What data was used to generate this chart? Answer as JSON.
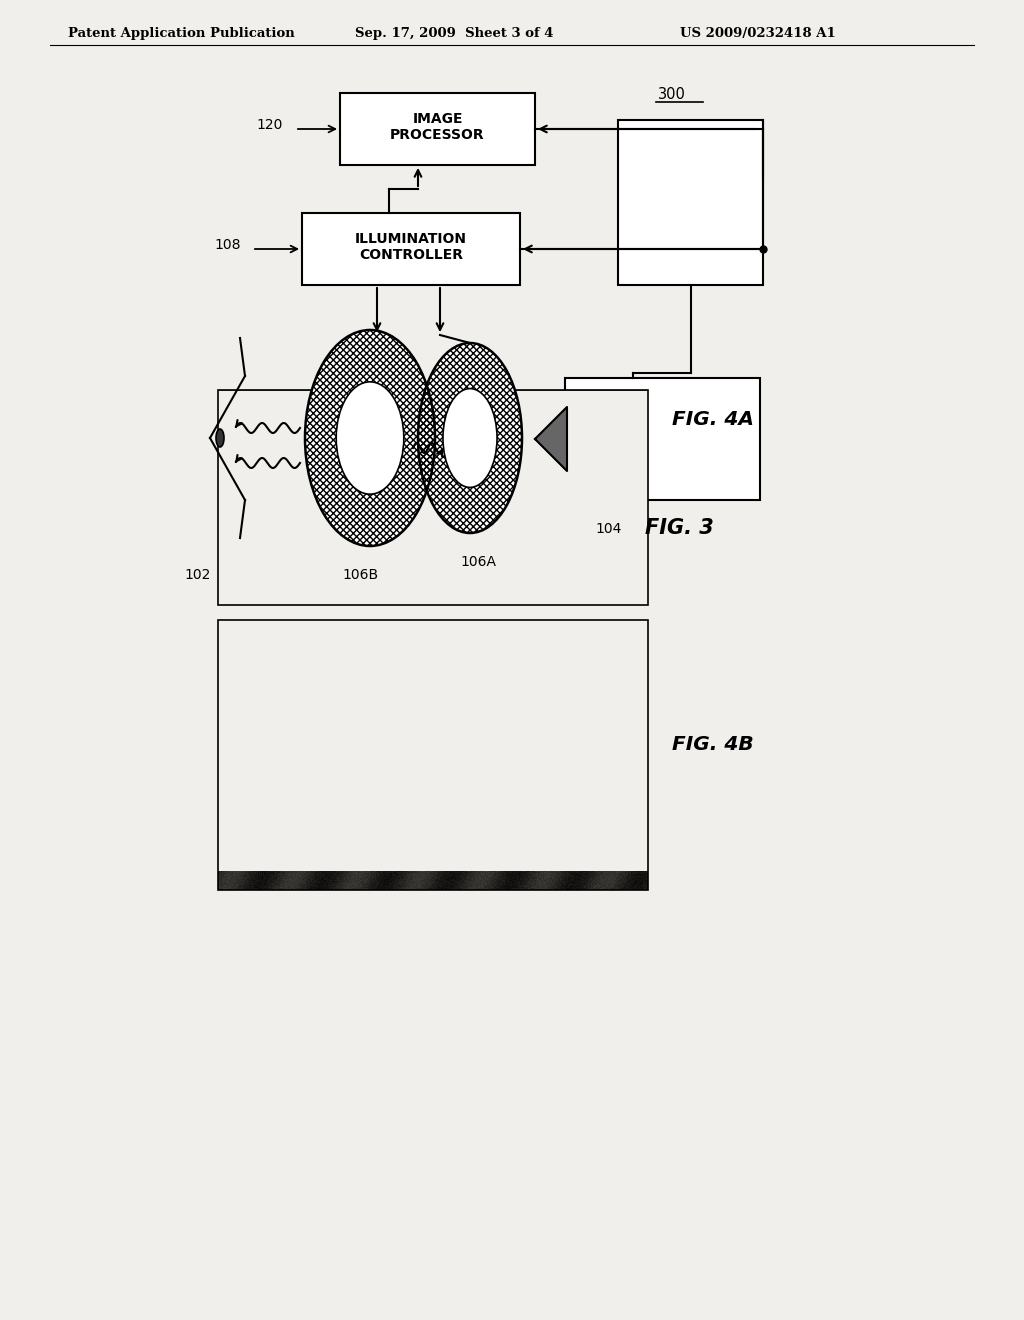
{
  "bg_color": "#f0efeb",
  "header_text": "Patent Application Publication",
  "header_date": "Sep. 17, 2009  Sheet 3 of 4",
  "header_patent": "US 2009/0232418 A1",
  "fig3_label": "FIG. 3",
  "fig4a_label": "FIG. 4A",
  "fig4b_label": "FIG. 4B",
  "box_image_processor": "IMAGE\nPROCESSOR",
  "box_illumination": "ILLUMINATION\nCONTROLLER",
  "label_120": "120",
  "label_108": "108",
  "label_300": "300",
  "label_104": "104",
  "label_102": "102",
  "label_106A": "106A",
  "label_106B": "106B"
}
